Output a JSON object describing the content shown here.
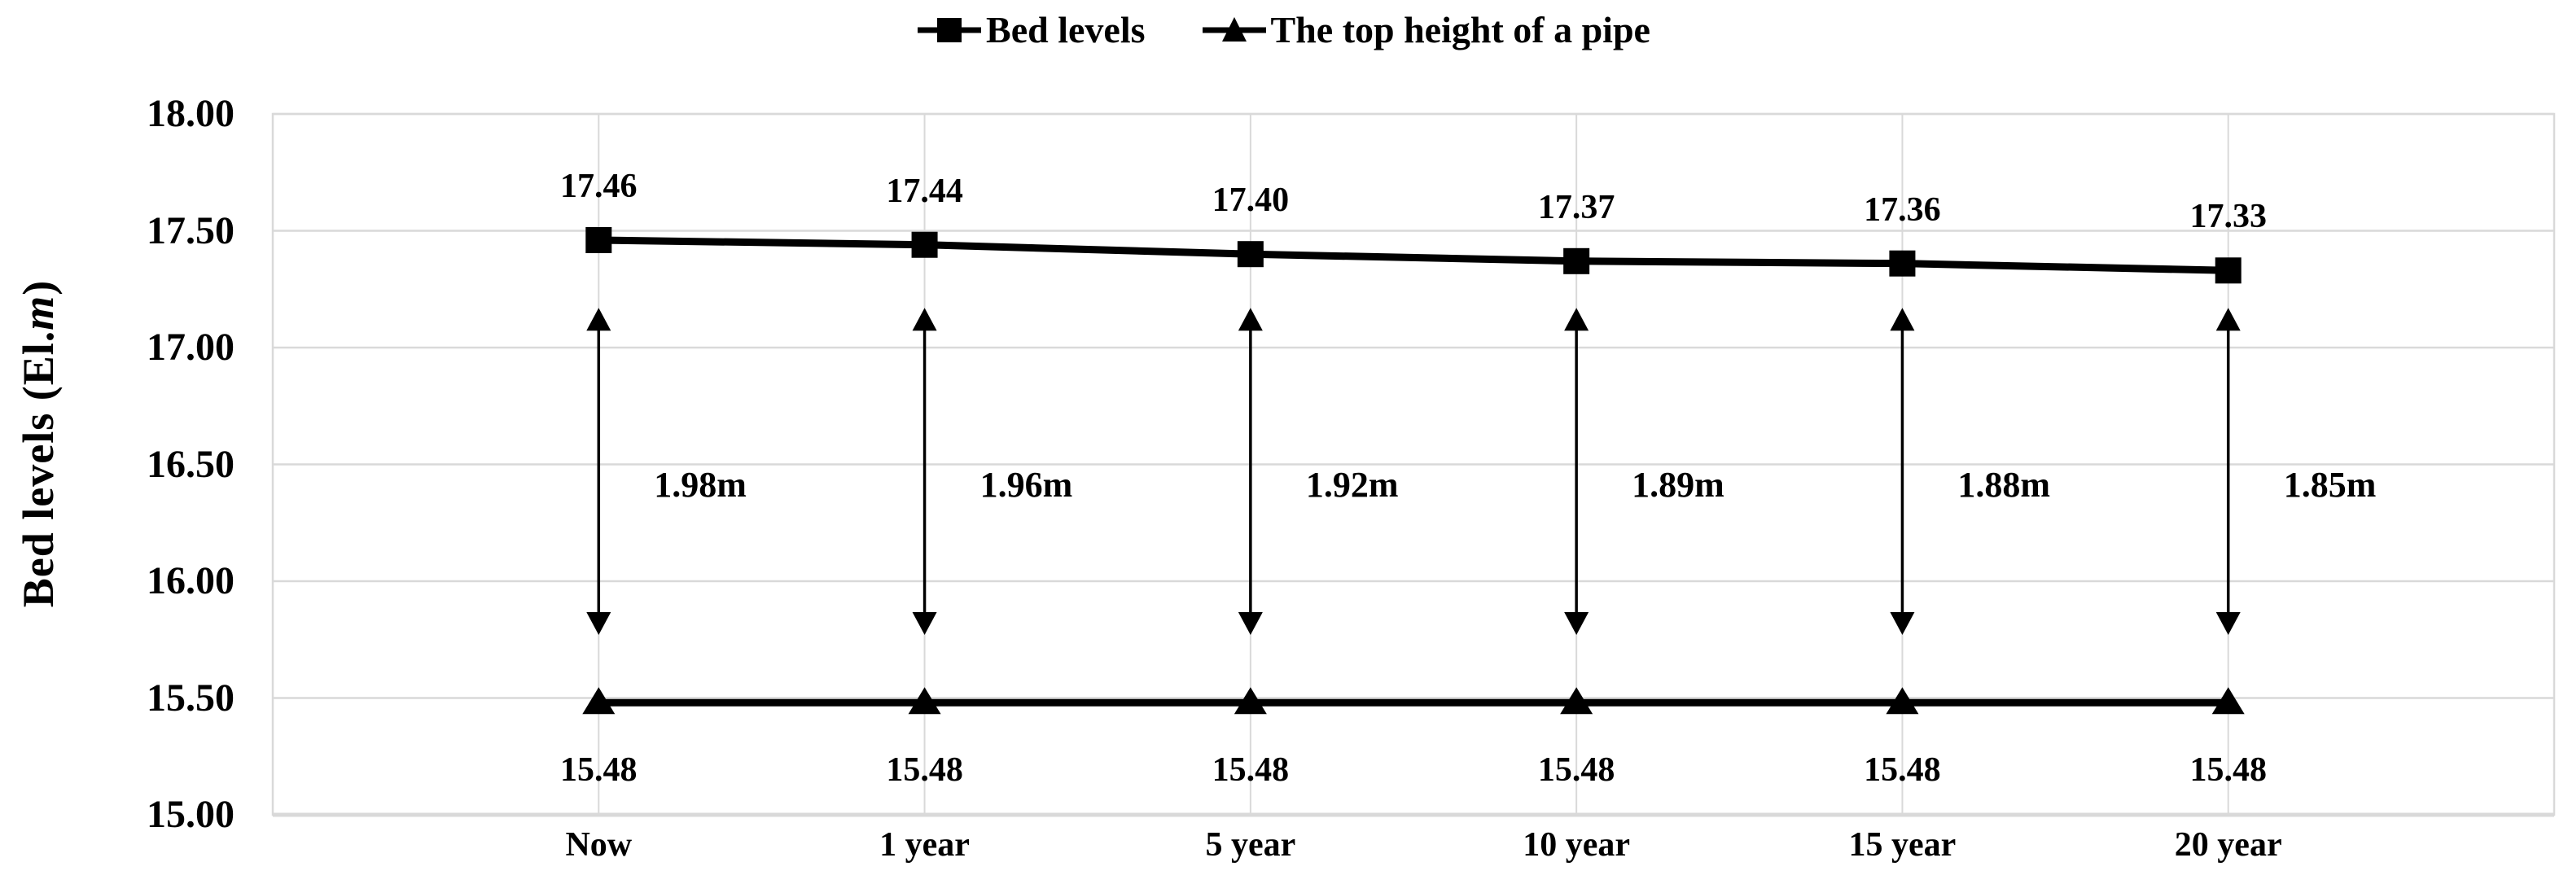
{
  "chart_data": {
    "type": "line",
    "categories": [
      "Now",
      "1 year",
      "5 year",
      "10 year",
      "15 year",
      "20 year"
    ],
    "series": [
      {
        "name": "Bed levels",
        "marker": "square",
        "values": [
          17.46,
          17.44,
          17.4,
          17.37,
          17.36,
          17.33
        ],
        "labels": [
          "17.46",
          "17.44",
          "17.40",
          "17.37",
          "17.36",
          "17.33"
        ]
      },
      {
        "name": "The top height of a pipe",
        "marker": "triangle",
        "values": [
          15.48,
          15.48,
          15.48,
          15.48,
          15.48,
          15.48
        ],
        "labels": [
          "15.48",
          "15.48",
          "15.48",
          "15.48",
          "15.48",
          "15.48"
        ]
      }
    ],
    "gap_annotations": [
      {
        "label": "1.98m"
      },
      {
        "label": "1.96m"
      },
      {
        "label": "1.92m"
      },
      {
        "label": "1.89m"
      },
      {
        "label": "1.88m"
      },
      {
        "label": "1.85m"
      }
    ],
    "arrow_span": {
      "top": 17.17,
      "bottom": 15.77
    },
    "ylabel": "Bed levels (El.m)",
    "ylabel_parts": {
      "prefix": "Bed levels (El.",
      "italic": "m",
      "suffix": ")"
    },
    "ylim": [
      15.0,
      18.0
    ],
    "ytick_step": 0.5,
    "ytick_labels": [
      "18.00",
      "17.50",
      "17.00",
      "16.50",
      "16.00",
      "15.50",
      "15.00"
    ],
    "grid": true,
    "legend_position": "top",
    "colors": {
      "series": "#000000",
      "gridline": "#d9d9d9",
      "axis_line": "#d9d9d9",
      "text": "#000000",
      "background": "#ffffff"
    }
  }
}
